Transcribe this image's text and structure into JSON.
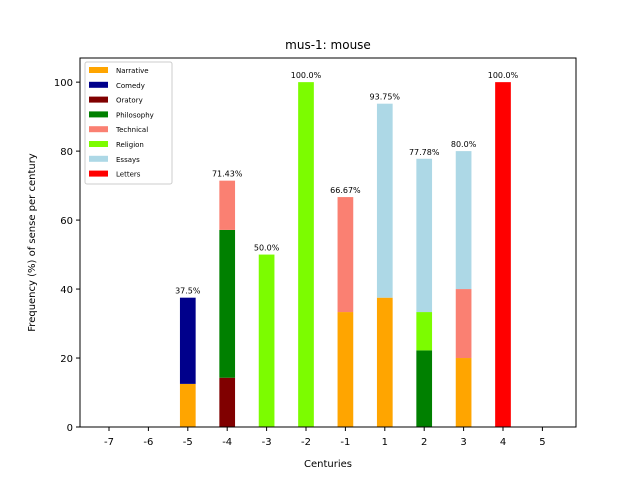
{
  "chart_data": {
    "type": "bar",
    "stacked": true,
    "title": "mus-1: mouse",
    "xlabel": "Centuries",
    "ylabel": "Frequency (%) of sense per century",
    "categories": [
      "-7",
      "-6",
      "-5",
      "-4",
      "-3",
      "-2",
      "-1",
      "1",
      "2",
      "3",
      "4",
      "5"
    ],
    "ylim": [
      0,
      107
    ],
    "yticks": [
      0,
      20,
      40,
      60,
      80,
      100
    ],
    "grid": false,
    "legend_position": "top-left",
    "series": [
      {
        "name": "Narrative",
        "color": "#ffa500",
        "values": [
          0,
          0,
          12.5,
          0,
          0,
          0,
          33.33,
          37.5,
          0,
          20,
          0,
          0
        ]
      },
      {
        "name": "Comedy",
        "color": "#00008b",
        "values": [
          0,
          0,
          25,
          0,
          0,
          0,
          0,
          0,
          0,
          0,
          0,
          0
        ]
      },
      {
        "name": "Oratory",
        "color": "#800000",
        "values": [
          0,
          0,
          0,
          14.29,
          0,
          0,
          0,
          0,
          0,
          0,
          0,
          0
        ]
      },
      {
        "name": "Philosophy",
        "color": "#008000",
        "values": [
          0,
          0,
          0,
          42.86,
          0,
          0,
          0,
          0,
          22.22,
          0,
          0,
          0
        ]
      },
      {
        "name": "Technical",
        "color": "#fa8072",
        "values": [
          0,
          0,
          0,
          14.28,
          0,
          0,
          33.34,
          0,
          0,
          20,
          0,
          0
        ]
      },
      {
        "name": "Religion",
        "color": "#7cfc00",
        "values": [
          0,
          0,
          0,
          0,
          50,
          100,
          0,
          0,
          11.11,
          0,
          0,
          0
        ]
      },
      {
        "name": "Essays",
        "color": "#add8e6",
        "values": [
          0,
          0,
          0,
          0,
          0,
          0,
          0,
          56.25,
          44.45,
          40,
          0,
          0
        ]
      },
      {
        "name": "Letters",
        "color": "#ff0000",
        "values": [
          0,
          0,
          0,
          0,
          0,
          0,
          0,
          0,
          0,
          0,
          100,
          0
        ]
      }
    ],
    "totals": [
      "",
      "",
      "37.5%",
      "71.43%",
      "50.0%",
      "100.0%",
      "66.67%",
      "93.75%",
      "77.78%",
      "80.0%",
      "100.0%",
      ""
    ]
  }
}
